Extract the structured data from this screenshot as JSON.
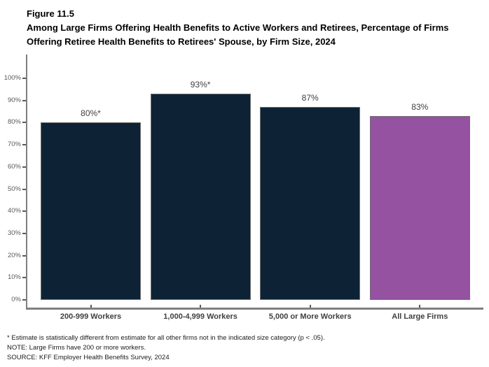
{
  "header": {
    "figure_label": "Figure 11.5",
    "title": "Among Large Firms Offering Health Benefits to Active Workers and Retirees, Percentage of Firms Offering Retiree Health Benefits to Retirees' Spouse, by Firm Size, 2024"
  },
  "chart_data": {
    "type": "bar",
    "title": "Figure 11.5",
    "subtitle": "Among Large Firms Offering Health Benefits to Active Workers and Retirees, Percentage of Firms Offering Retiree Health Benefits to Retirees' Spouse, by Firm Size, 2024",
    "categories": [
      "200-999 Workers",
      "1,000-4,999 Workers",
      "5,000 or More Workers",
      "All Large Firms"
    ],
    "values": [
      80,
      93,
      87,
      83
    ],
    "bar_labels": [
      "80%*",
      "93%*",
      "87%",
      "83%"
    ],
    "bar_colors": [
      "#0D2335",
      "#0D2335",
      "#0D2335",
      "#9452A0"
    ],
    "xlabel": "",
    "ylabel": "",
    "ylim": [
      0,
      100
    ],
    "yticks": [
      0,
      10,
      20,
      30,
      40,
      50,
      60,
      70,
      80,
      90,
      100
    ],
    "ytick_labels": [
      "0%",
      "10%",
      "20%",
      "30%",
      "40%",
      "50%",
      "60%",
      "70%",
      "80%",
      "90%",
      "100%"
    ],
    "grid": false,
    "legend": null
  },
  "footnotes": [
    "* Estimate is statistically different from estimate for all other firms not in the indicated size category (p < .05).",
    "NOTE: Large Firms have 200 or more workers.",
    "SOURCE: KFF Employer Health Benefits Survey, 2024"
  ],
  "colors": {
    "bar_navy": "#0D2335",
    "bar_purple": "#9452A0",
    "bar_border": "#707070",
    "axis": "#808080",
    "tick": "#595959",
    "category_label": "#404040",
    "value_label": "#404040",
    "title": "#000000"
  }
}
